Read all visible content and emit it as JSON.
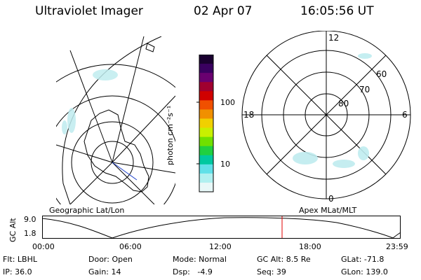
{
  "header": {
    "instrument": "Ultraviolet Imager",
    "date": "02 Apr 07",
    "time": "16:05:56 UT"
  },
  "colorbar": {
    "unit_label": "photon cm⁻²s⁻¹",
    "ticks": [
      "100",
      "10"
    ],
    "colors": [
      "#1a0030",
      "#3a0060",
      "#6a0070",
      "#a00030",
      "#d00000",
      "#f05000",
      "#f09000",
      "#f0d000",
      "#c8f000",
      "#70e000",
      "#20d040",
      "#00c8a0",
      "#60e0e8",
      "#b0f0f0",
      "#e8f8f8"
    ]
  },
  "left_map": {
    "caption": "Geographic Lat/Lon"
  },
  "right_map": {
    "caption": "Apex MLat/MLT",
    "mlt_labels": {
      "top": "12",
      "left": "18",
      "right": "6",
      "bottom": "0"
    },
    "lat_labels": [
      "60",
      "70",
      "80"
    ]
  },
  "altitude_plot": {
    "ylabel": "GC Alt",
    "yticks": [
      "9.0",
      "1.8"
    ],
    "xticks": [
      "00:00",
      "06:00",
      "12:00",
      "18:00",
      "23:59"
    ],
    "cursor_color": "#e00000"
  },
  "status": {
    "flt": "Flt: LBHL",
    "door": "Door: Open",
    "mode": "Mode: Normal",
    "gc_alt": "GC Alt: 8.5 Re",
    "glat": "GLat: -71.8",
    "ip": "IP: 36.0",
    "gain": "Gain: 14",
    "dsp": "Dsp:   -4.9",
    "seq": "Seq: 39",
    "glon": "GLon: 139.0"
  }
}
